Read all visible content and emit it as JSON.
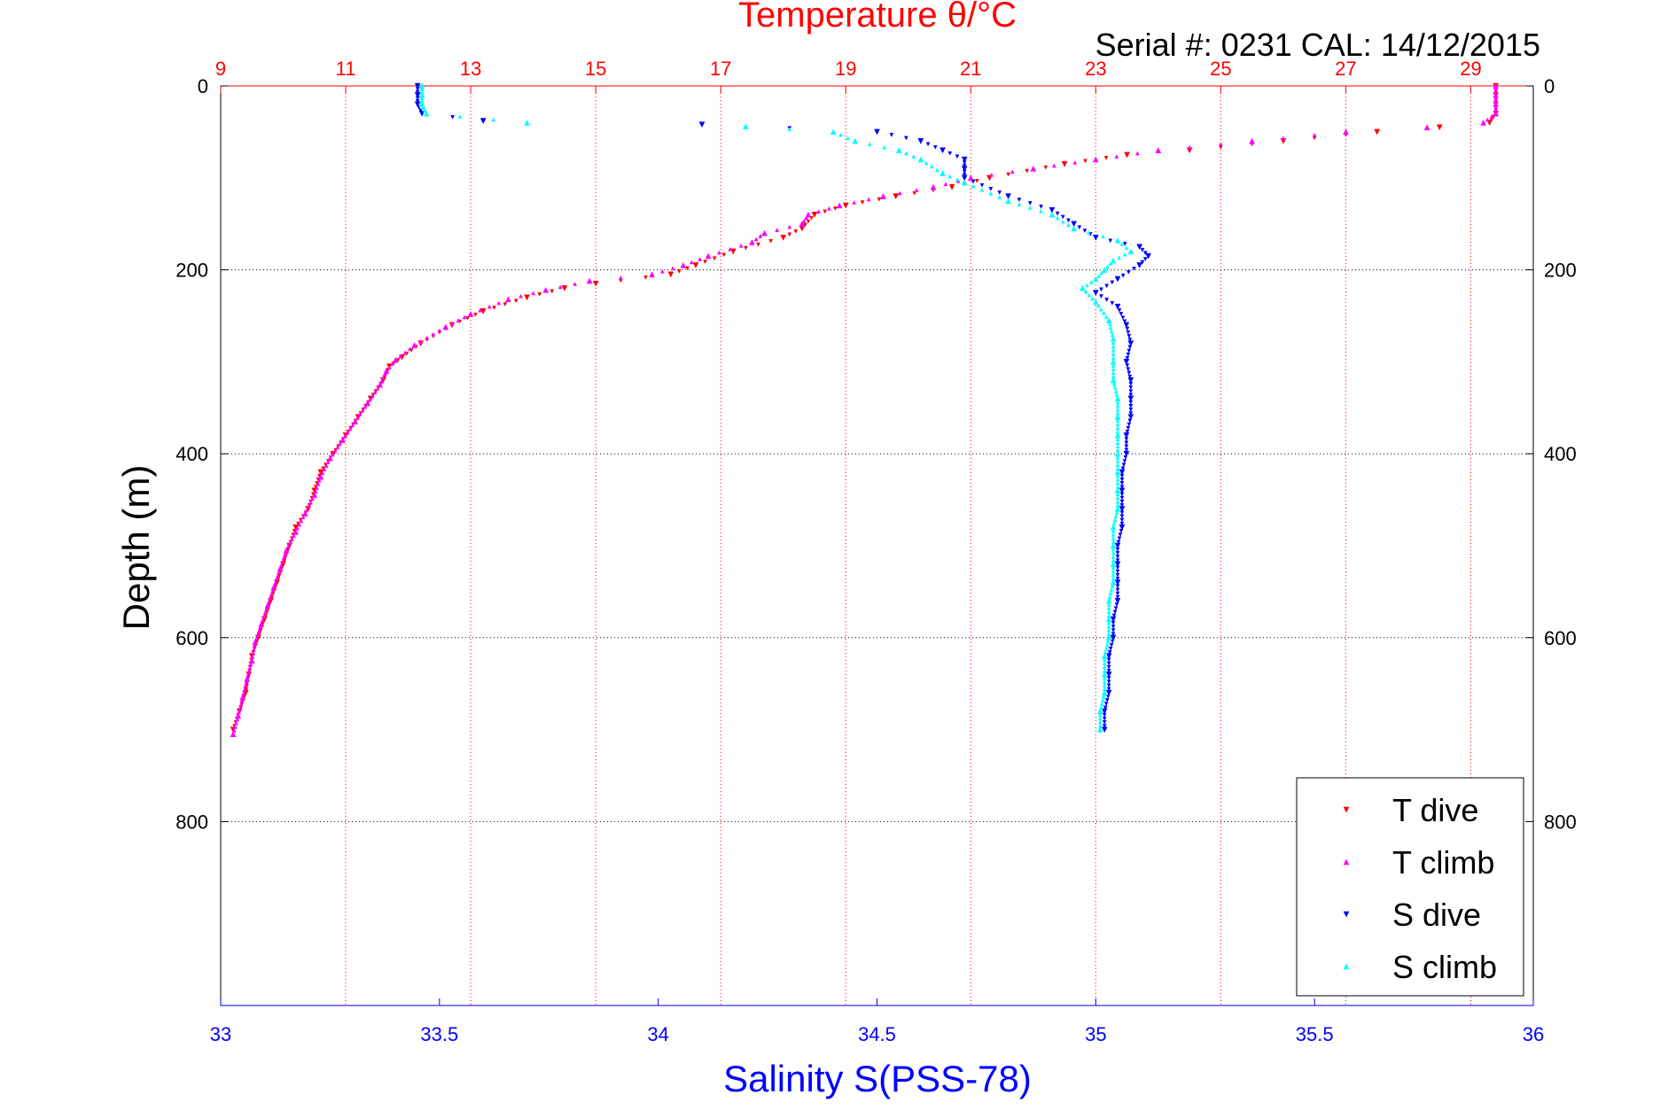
{
  "chart_data": {
    "type": "scatter",
    "title": "Temperature θ/°C",
    "subtitle": "Serial #: 0231  CAL: 14/12/2015",
    "ylabel": "Depth (m)",
    "xlabel": "Salinity S(PSS-78)",
    "ylim": [
      0,
      1000
    ],
    "y_reversed": true,
    "y_ticks": [
      0,
      200,
      400,
      600,
      800
    ],
    "x_bottom": {
      "label": "Salinity S(PSS-78)",
      "range": [
        33,
        36
      ],
      "ticks": [
        33,
        33.5,
        34,
        34.5,
        35,
        35.5,
        36
      ],
      "color": "#0000ff"
    },
    "x_top": {
      "label": "Temperature θ/°C",
      "range": [
        9,
        30
      ],
      "ticks": [
        9,
        11,
        13,
        15,
        17,
        19,
        21,
        23,
        25,
        27,
        29
      ],
      "color": "#ff0000"
    },
    "grid": true,
    "legend_position": "bottom-right",
    "series": [
      {
        "name": "T dive",
        "axis": "top",
        "color": "#ff0000",
        "marker": "triangle-down",
        "points": [
          [
            29.4,
            0
          ],
          [
            29.4,
            10
          ],
          [
            29.4,
            20
          ],
          [
            29.4,
            30
          ],
          [
            29.3,
            40
          ],
          [
            28.5,
            45
          ],
          [
            27.5,
            50
          ],
          [
            26,
            60
          ],
          [
            24.5,
            70
          ],
          [
            23.5,
            75
          ],
          [
            22.5,
            85
          ],
          [
            21.3,
            100
          ],
          [
            20.7,
            110
          ],
          [
            19.8,
            120
          ],
          [
            19,
            130
          ],
          [
            18.5,
            140
          ],
          [
            18.3,
            155
          ],
          [
            18,
            165
          ],
          [
            17.2,
            180
          ],
          [
            16.6,
            195
          ],
          [
            16.2,
            205
          ],
          [
            15,
            215
          ],
          [
            14.5,
            220
          ],
          [
            13.9,
            230
          ],
          [
            13.2,
            245
          ],
          [
            12.7,
            260
          ],
          [
            12.2,
            280
          ],
          [
            11.9,
            295
          ],
          [
            11.7,
            305
          ],
          [
            11.6,
            320
          ],
          [
            11.4,
            340
          ],
          [
            11.2,
            360
          ],
          [
            11,
            380
          ],
          [
            10.8,
            400
          ],
          [
            10.6,
            420
          ],
          [
            10.5,
            440
          ],
          [
            10.4,
            460
          ],
          [
            10.2,
            480
          ],
          [
            10.1,
            500
          ],
          [
            10,
            520
          ],
          [
            9.9,
            540
          ],
          [
            9.8,
            560
          ],
          [
            9.7,
            580
          ],
          [
            9.6,
            600
          ],
          [
            9.5,
            620
          ],
          [
            9.45,
            640
          ],
          [
            9.4,
            660
          ],
          [
            9.3,
            680
          ],
          [
            9.2,
            700
          ]
        ]
      },
      {
        "name": "T climb",
        "axis": "top",
        "color": "#ff00ff",
        "marker": "triangle-up",
        "points": [
          [
            29.4,
            0
          ],
          [
            29.4,
            10
          ],
          [
            29.4,
            20
          ],
          [
            29.4,
            30
          ],
          [
            29.2,
            40
          ],
          [
            28.3,
            45
          ],
          [
            27,
            50
          ],
          [
            25.5,
            60
          ],
          [
            24,
            70
          ],
          [
            23,
            80
          ],
          [
            22,
            90
          ],
          [
            21,
            100
          ],
          [
            20.4,
            110
          ],
          [
            19.6,
            120
          ],
          [
            18.9,
            130
          ],
          [
            18.4,
            140
          ],
          [
            18.3,
            150
          ],
          [
            17.7,
            160
          ],
          [
            17.5,
            170
          ],
          [
            16.8,
            185
          ],
          [
            16.4,
            195
          ],
          [
            15.9,
            205
          ],
          [
            14.9,
            212
          ],
          [
            14.2,
            222
          ],
          [
            13.6,
            232
          ],
          [
            13,
            248
          ],
          [
            12.6,
            262
          ],
          [
            12.1,
            282
          ],
          [
            11.8,
            298
          ],
          [
            11.65,
            310
          ],
          [
            11.55,
            325
          ],
          [
            11.35,
            345
          ],
          [
            11.15,
            365
          ],
          [
            10.95,
            385
          ],
          [
            10.75,
            405
          ],
          [
            10.6,
            425
          ],
          [
            10.5,
            445
          ],
          [
            10.35,
            465
          ],
          [
            10.2,
            485
          ],
          [
            10.05,
            505
          ],
          [
            9.95,
            525
          ],
          [
            9.85,
            545
          ],
          [
            9.75,
            565
          ],
          [
            9.65,
            585
          ],
          [
            9.55,
            605
          ],
          [
            9.5,
            625
          ],
          [
            9.42,
            645
          ],
          [
            9.35,
            665
          ],
          [
            9.28,
            685
          ],
          [
            9.2,
            705
          ]
        ]
      },
      {
        "name": "S dive",
        "axis": "bottom",
        "color": "#0000ff",
        "marker": "triangle-down",
        "points": [
          [
            33.45,
            0
          ],
          [
            33.45,
            10
          ],
          [
            33.45,
            20
          ],
          [
            33.46,
            30
          ],
          [
            33.6,
            38
          ],
          [
            34.1,
            42
          ],
          [
            34.5,
            50
          ],
          [
            34.6,
            60
          ],
          [
            34.65,
            70
          ],
          [
            34.7,
            80
          ],
          [
            34.7,
            90
          ],
          [
            34.7,
            100
          ],
          [
            34.8,
            120
          ],
          [
            34.9,
            135
          ],
          [
            34.95,
            150
          ],
          [
            35,
            165
          ],
          [
            35.1,
            175
          ],
          [
            35.12,
            185
          ],
          [
            35.1,
            195
          ],
          [
            35.05,
            210
          ],
          [
            35,
            225
          ],
          [
            35.05,
            240
          ],
          [
            35.07,
            260
          ],
          [
            35.08,
            280
          ],
          [
            35.07,
            300
          ],
          [
            35.08,
            320
          ],
          [
            35.08,
            340
          ],
          [
            35.08,
            360
          ],
          [
            35.07,
            380
          ],
          [
            35.07,
            400
          ],
          [
            35.06,
            420
          ],
          [
            35.06,
            440
          ],
          [
            35.06,
            460
          ],
          [
            35.06,
            480
          ],
          [
            35.05,
            500
          ],
          [
            35.05,
            520
          ],
          [
            35.05,
            540
          ],
          [
            35.05,
            560
          ],
          [
            35.04,
            580
          ],
          [
            35.04,
            600
          ],
          [
            35.03,
            620
          ],
          [
            35.03,
            640
          ],
          [
            35.03,
            660
          ],
          [
            35.02,
            680
          ],
          [
            35.02,
            700
          ]
        ]
      },
      {
        "name": "S climb",
        "axis": "bottom",
        "color": "#00ffff",
        "marker": "triangle-up",
        "points": [
          [
            33.46,
            0
          ],
          [
            33.46,
            10
          ],
          [
            33.46,
            20
          ],
          [
            33.47,
            30
          ],
          [
            33.7,
            40
          ],
          [
            34.2,
            44
          ],
          [
            34.4,
            50
          ],
          [
            34.45,
            60
          ],
          [
            34.55,
            70
          ],
          [
            34.6,
            80
          ],
          [
            34.65,
            95
          ],
          [
            34.7,
            105
          ],
          [
            34.8,
            125
          ],
          [
            34.9,
            140
          ],
          [
            34.95,
            155
          ],
          [
            35.05,
            168
          ],
          [
            35.08,
            180
          ],
          [
            35.04,
            190
          ],
          [
            35.02,
            200
          ],
          [
            35,
            210
          ],
          [
            34.97,
            220
          ],
          [
            35,
            235
          ],
          [
            35.03,
            255
          ],
          [
            35.04,
            275
          ],
          [
            35.04,
            300
          ],
          [
            35.04,
            320
          ],
          [
            35.05,
            340
          ],
          [
            35.05,
            360
          ],
          [
            35.05,
            380
          ],
          [
            35.05,
            400
          ],
          [
            35.05,
            420
          ],
          [
            35.05,
            440
          ],
          [
            35.05,
            460
          ],
          [
            35.04,
            480
          ],
          [
            35.04,
            500
          ],
          [
            35.04,
            520
          ],
          [
            35.04,
            540
          ],
          [
            35.03,
            560
          ],
          [
            35.03,
            580
          ],
          [
            35.03,
            600
          ],
          [
            35.02,
            620
          ],
          [
            35.02,
            640
          ],
          [
            35.02,
            660
          ],
          [
            35.01,
            680
          ],
          [
            35.01,
            700
          ]
        ]
      }
    ]
  }
}
